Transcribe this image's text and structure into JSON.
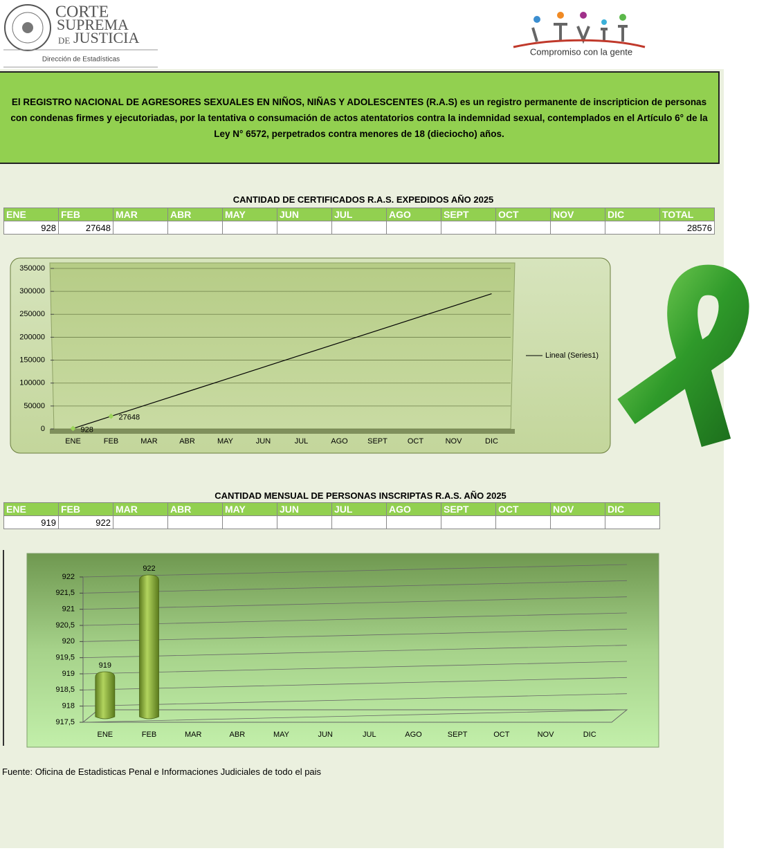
{
  "header": {
    "org_lines": [
      "CORTE",
      "SUPREMA",
      "DE",
      "JUSTICIA"
    ],
    "department": "Dirección de Estadísticas",
    "slogan": "Compromiso con la gente"
  },
  "banner": "El REGISTRO NACIONAL DE AGRESORES SEXUALES EN NIÑOS, NIÑAS Y ADOLESCENTES (R.A.S) es un registro permanente de inscripticion de personas con condenas firmes y ejecutoriadas, por la tentativa o consumación de actos atentatorios contra la indemnidad sexual, contemplados en el Artículo 6° de la Ley N° 6572, perpetrados contra menores de 18 (dieciocho) años.",
  "tables": [
    {
      "title": "CANTIDAD DE CERTIFICADOS R.A.S. EXPEDIDOS  AÑO 2025",
      "headers": [
        "ENE",
        "FEB",
        "MAR",
        "ABR",
        "MAY",
        "JUN",
        "JUL",
        "AGO",
        "SEPT",
        "OCT",
        "NOV",
        "DIC",
        "TOTAL"
      ],
      "rows": [
        [
          928,
          27648,
          null,
          null,
          null,
          null,
          null,
          null,
          null,
          null,
          null,
          null,
          28576
        ]
      ]
    },
    {
      "title": "CANTIDAD MENSUAL DE PERSONAS INSCRIPTAS R.A.S.   AÑO 2025",
      "headers": [
        "ENE",
        "FEB",
        "MAR",
        "ABR",
        "MAY",
        "JUN",
        "JUL",
        "AGO",
        "SEPT",
        "OCT",
        "NOV",
        "DIC"
      ],
      "rows": [
        [
          919,
          922,
          null,
          null,
          null,
          null,
          null,
          null,
          null,
          null,
          null,
          null
        ]
      ]
    }
  ],
  "chart_data": [
    {
      "type": "line",
      "categories": [
        "ENE",
        "FEB",
        "MAR",
        "ABR",
        "MAY",
        "JUN",
        "JUL",
        "AGO",
        "SEPT",
        "OCT",
        "NOV",
        "DIC"
      ],
      "series": [
        {
          "color": "#9bd35a",
          "values": [
            928,
            27648,
            null,
            null,
            null,
            null,
            null,
            null,
            null,
            null,
            null,
            null
          ]
        }
      ],
      "trendline": {
        "name": "Lineal (Series1)",
        "color": "#000000",
        "values": [
          928,
          27648,
          54368,
          81088,
          107808,
          134528,
          161248,
          187968,
          214688,
          241408,
          268128,
          294848
        ]
      },
      "ylim": [
        0,
        350000
      ],
      "yticks": [
        0,
        50000,
        100000,
        150000,
        200000,
        250000,
        300000,
        350000
      ],
      "grid": true,
      "legend": "right"
    },
    {
      "type": "bar",
      "categories": [
        "ENE",
        "FEB",
        "MAR",
        "ABR",
        "MAY",
        "JUN",
        "JUL",
        "AGO",
        "SEPT",
        "OCT",
        "NOV",
        "DIC"
      ],
      "values": [
        919,
        922,
        null,
        null,
        null,
        null,
        null,
        null,
        null,
        null,
        null,
        null
      ],
      "color": "#8db33a",
      "ylim": [
        917.5,
        922
      ],
      "yticks": [
        {
          "value": 917.5,
          "label": "917,5"
        },
        918,
        {
          "value": 918.5,
          "label": "918,5"
        },
        919,
        {
          "value": 919.5,
          "label": "919,5"
        },
        920,
        {
          "value": 920.5,
          "label": "920,5"
        },
        921,
        {
          "value": 921.5,
          "label": "921,5"
        },
        922
      ],
      "grid": true
    }
  ],
  "source": "Fuente: Oficina de Estadisticas Penal e Informaciones Judiciales de todo el pais"
}
